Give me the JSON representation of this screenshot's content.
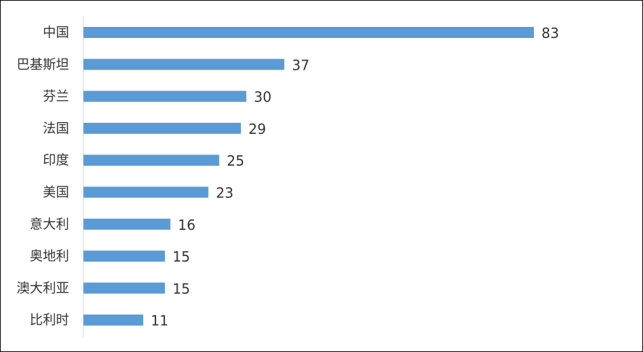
{
  "chart_data": {
    "type": "bar",
    "orientation": "horizontal",
    "title": "",
    "xlabel": "",
    "ylabel": "",
    "categories": [
      "中国",
      "巴基斯坦",
      "芬兰",
      "法国",
      "印度",
      "美国",
      "意大利",
      "奥地利",
      "澳大利亚",
      "比利时"
    ],
    "values": [
      83,
      37,
      30,
      29,
      25,
      23,
      16,
      15,
      15,
      11
    ],
    "xlim": [
      0,
      83
    ],
    "grid": false,
    "legend": "none",
    "bar_color": "#5b9bd5",
    "axis_color": "#d9d9d9",
    "text_color": "#333333"
  }
}
